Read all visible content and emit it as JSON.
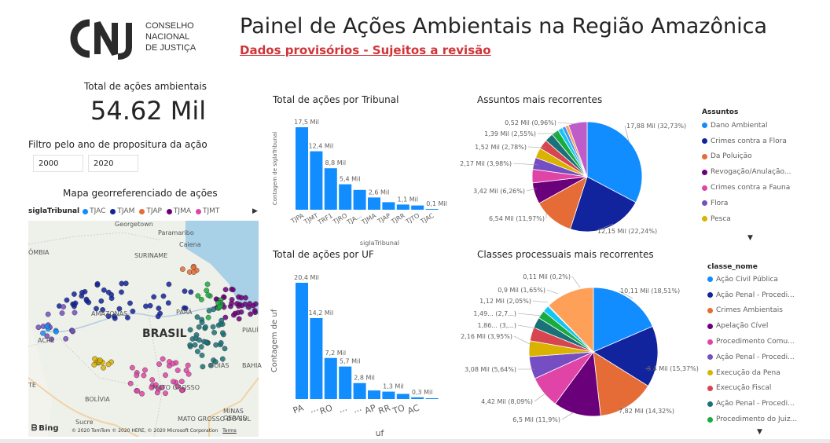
{
  "logo": {
    "letters": "CNJ",
    "lines": [
      "CONSELHO",
      "NACIONAL",
      "DE JUSTIÇA"
    ]
  },
  "header": {
    "title": "Painel de Ações Ambientais na Região Amazônica",
    "subtitle": "Dados provisórios - Sujeitos a revisão"
  },
  "kpi": {
    "label": "Total de ações ambientais",
    "value": "54.62 Mil"
  },
  "filter": {
    "label": "Filtro pelo ano de propositura da ação",
    "start": "2000",
    "end": "2020"
  },
  "map": {
    "title": "Mapa georreferenciado de ações",
    "legend_title": "siglaTribunal",
    "legend": [
      {
        "label": "TJAC",
        "color": "#118dff"
      },
      {
        "label": "TJAM",
        "color": "#12239e"
      },
      {
        "label": "TJAP",
        "color": "#e66c37"
      },
      {
        "label": "TJMA",
        "color": "#6b007b"
      },
      {
        "label": "TJMT",
        "color": "#e044a7"
      }
    ],
    "place_labels": [
      "Georgetown",
      "Paramaribo",
      "SURINAME",
      "Caiena",
      "ÔMBIA",
      "AMAZONAS",
      "PARÁ",
      "BRASIL",
      "ACRE",
      "PIAUÍ",
      "BOLÍVIA",
      "MATO GROSSO",
      "MATO GROSSO DO SUL",
      "MINAS GERAIS",
      "GOIÁS",
      "Sucre",
      "BAHIA",
      "TE"
    ],
    "bing": "Bing",
    "copyright": "© 2020 TomTom © 2020 HERE, © 2020 Microsoft Corporation",
    "terms": "Terms"
  },
  "chart_data": [
    {
      "type": "bar",
      "title": "Total de ações por Tribunal",
      "xlabel": "siglaTribunal",
      "ylabel": "Contagem de siglaTribunal",
      "categories": [
        "TJPA",
        "TJMT",
        "TRF1",
        "TJRO",
        "TJA...",
        "TJMA",
        "TJAP",
        "TJRR",
        "TJTO",
        "TJAC"
      ],
      "values": [
        17.5,
        12.4,
        8.8,
        5.4,
        4.2,
        2.6,
        1.6,
        1.1,
        0.9,
        0.1
      ],
      "data_labels": [
        "17,5 Mil",
        "12,4 Mil",
        "8,8 Mil",
        "5,4 Mil",
        "",
        "2,6 Mil",
        "",
        "1,1 Mil",
        "",
        "0,1 Mil"
      ],
      "color": "#118dff"
    },
    {
      "type": "bar",
      "title": "Total de ações por UF",
      "xlabel": "uf",
      "ylabel": "Contagem de uf",
      "categories": [
        "PA",
        "...",
        "RO",
        "...",
        "...",
        "AP",
        "RR",
        "TO",
        "AC",
        ""
      ],
      "values": [
        20.4,
        14.2,
        7.2,
        5.7,
        2.8,
        1.5,
        1.3,
        0.9,
        0.3,
        0.1
      ],
      "data_labels": [
        "20,4 Mil",
        "14,2 Mil",
        "7,2 Mil",
        "5,7 Mil",
        "2,8 Mil",
        "",
        "1,3 Mil",
        "",
        "0,3 Mil",
        ""
      ],
      "color": "#118dff"
    },
    {
      "type": "pie",
      "title": "Assuntos mais recorrentes",
      "legend_title": "Assuntos",
      "legend": [
        "Dano Ambiental",
        "Crimes contra a Flora",
        "Da Poluição",
        "Revogação/Anulação...",
        "Crimes contra a Fauna",
        "Flora",
        "Pesca"
      ],
      "slices": [
        {
          "value": 32.73,
          "label": "17,88 Mil (32,73%)",
          "color": "#118dff"
        },
        {
          "value": 22.24,
          "label": "12,15 Mil (22,24%)",
          "color": "#12239e"
        },
        {
          "value": 11.97,
          "label": "6,54 Mil (11,97%)",
          "color": "#e66c37"
        },
        {
          "value": 6.26,
          "label": "3,42 Mil (6,26%)",
          "color": "#6b007b"
        },
        {
          "value": 3.98,
          "label": "2,17 Mil (3,98%)",
          "color": "#e044a7"
        },
        {
          "value": 3.5,
          "label": "",
          "color": "#744ec2"
        },
        {
          "value": 3.0,
          "label": "",
          "color": "#d9b300"
        },
        {
          "value": 2.78,
          "label": "1,52 Mil (2,78%)",
          "color": "#d64550"
        },
        {
          "value": 2.55,
          "label": "1,39 Mil (2,55%)",
          "color": "#197278"
        },
        {
          "value": 2.1,
          "label": "",
          "color": "#1aab40"
        },
        {
          "value": 1.4,
          "label": "",
          "color": "#15c6f4"
        },
        {
          "value": 1.0,
          "label": "",
          "color": "#4092ff"
        },
        {
          "value": 0.96,
          "label": "0,52 Mil (0,96%)",
          "color": "#ffa058"
        },
        {
          "value": 5.53,
          "label": "",
          "color": "#be5dc9"
        }
      ]
    },
    {
      "type": "pie",
      "title": "Classes processuais mais recorrentes",
      "legend_title": "classe_nome",
      "legend": [
        "Ação Civil Pública",
        "Ação Penal - Procedi...",
        "Crimes Ambientais",
        "Apelação Cível",
        "Procedimento Comu...",
        "Ação Penal - Procedi...",
        "Execução da Pena",
        "Execução Fiscal",
        "Ação Penal - Procedi...",
        "Procedimento do Juiz..."
      ],
      "slices": [
        {
          "value": 18.51,
          "label": "10,11 Mil (18,51%)",
          "color": "#118dff"
        },
        {
          "value": 15.37,
          "label": "8,4 Mil (15,37%)",
          "color": "#12239e"
        },
        {
          "value": 14.32,
          "label": "7,82 Mil (14,32%)",
          "color": "#e66c37"
        },
        {
          "value": 11.9,
          "label": "6,5 Mil (11,9%)",
          "color": "#6b007b"
        },
        {
          "value": 8.09,
          "label": "4,42 Mil (8,09%)",
          "color": "#e044a7"
        },
        {
          "value": 5.64,
          "label": "3,08 Mil (5,64%)",
          "color": "#744ec2"
        },
        {
          "value": 3.95,
          "label": "2,16 Mil (3,95%)",
          "color": "#d9b300"
        },
        {
          "value": 3.4,
          "label": "1,86... (3,...)",
          "color": "#d64550"
        },
        {
          "value": 2.7,
          "label": "1,49... (2,7...)",
          "color": "#197278"
        },
        {
          "value": 2.05,
          "label": "1,12 Mil (2,05%)",
          "color": "#1aab40"
        },
        {
          "value": 1.65,
          "label": "0,9 Mil (1,65%)",
          "color": "#15c6f4"
        },
        {
          "value": 0.2,
          "label": "0,11 Mil (0,2%)",
          "color": "#4092ff"
        },
        {
          "value": 12.22,
          "label": "",
          "color": "#ffa058"
        }
      ]
    }
  ]
}
